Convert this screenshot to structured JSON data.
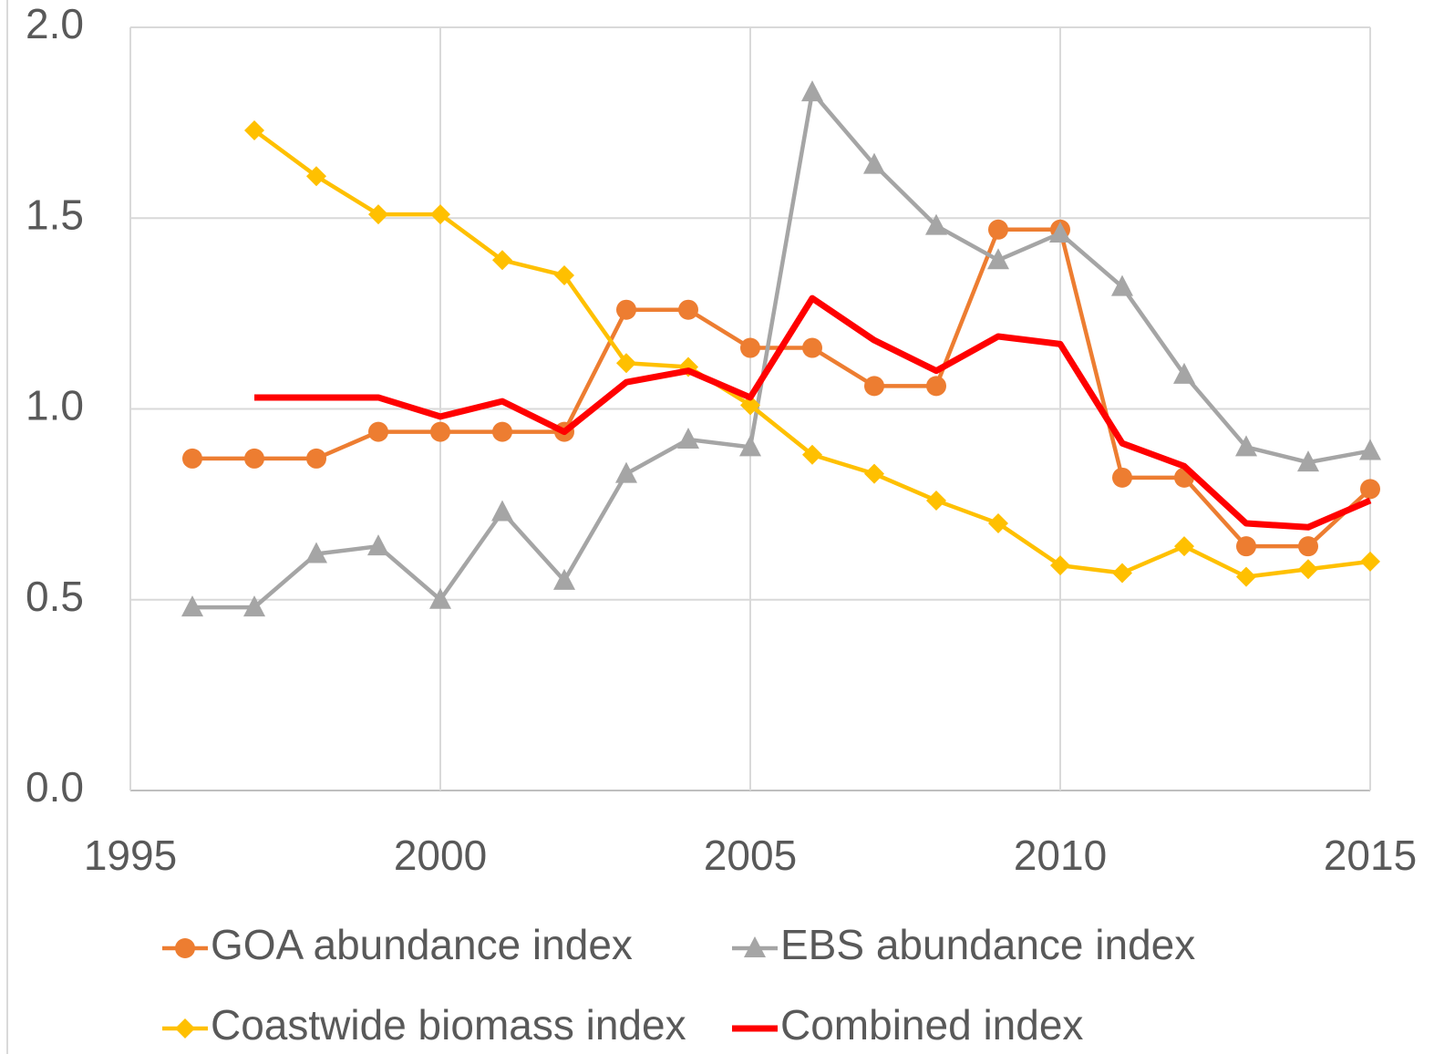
{
  "chart_data": {
    "type": "line",
    "x": [
      1996,
      1997,
      1998,
      1999,
      2000,
      2001,
      2002,
      2003,
      2004,
      2005,
      2006,
      2007,
      2008,
      2009,
      2010,
      2011,
      2012,
      2013,
      2014,
      2015
    ],
    "xlim": [
      1995,
      2015
    ],
    "xticks": [
      1995,
      2000,
      2005,
      2010,
      2015
    ],
    "ylim": [
      0,
      2
    ],
    "yticks": [
      {
        "value": 0,
        "label": "0.0"
      },
      0.5,
      {
        "value": 1,
        "label": "1.0"
      },
      1.5,
      {
        "value": 2,
        "label": "2.0"
      }
    ],
    "grid": true,
    "legend": "bottom",
    "series": [
      {
        "name": "GOA abundance index",
        "color": "#ED7D31",
        "marker": "circle",
        "values": [
          0.87,
          0.87,
          0.87,
          0.94,
          0.94,
          0.94,
          0.94,
          1.26,
          1.26,
          1.16,
          1.16,
          1.06,
          1.06,
          1.47,
          1.47,
          0.82,
          0.82,
          0.64,
          0.64,
          0.79
        ]
      },
      {
        "name": "EBS abundance index",
        "color": "#A5A5A5",
        "marker": "triangle",
        "values": [
          0.48,
          0.48,
          0.62,
          0.64,
          0.5,
          0.73,
          0.55,
          0.83,
          0.92,
          0.9,
          1.83,
          1.64,
          1.48,
          1.39,
          1.46,
          1.32,
          1.09,
          0.9,
          0.86,
          0.89
        ]
      },
      {
        "name": "Coastwide biomass index",
        "color": "#FFC000",
        "marker": "diamond",
        "values": [
          null,
          1.73,
          1.61,
          1.51,
          1.51,
          1.39,
          1.35,
          1.12,
          1.11,
          1.01,
          0.88,
          0.83,
          0.76,
          0.7,
          0.59,
          0.57,
          0.64,
          0.56,
          0.58,
          0.6
        ]
      },
      {
        "name": "Combined index",
        "color": "#FF0000",
        "marker": "none",
        "values": [
          null,
          1.03,
          1.03,
          1.03,
          0.98,
          1.02,
          0.94,
          1.07,
          1.1,
          1.03,
          1.29,
          1.18,
          1.1,
          1.19,
          1.17,
          0.91,
          0.85,
          0.7,
          0.69,
          0.76
        ]
      }
    ]
  }
}
